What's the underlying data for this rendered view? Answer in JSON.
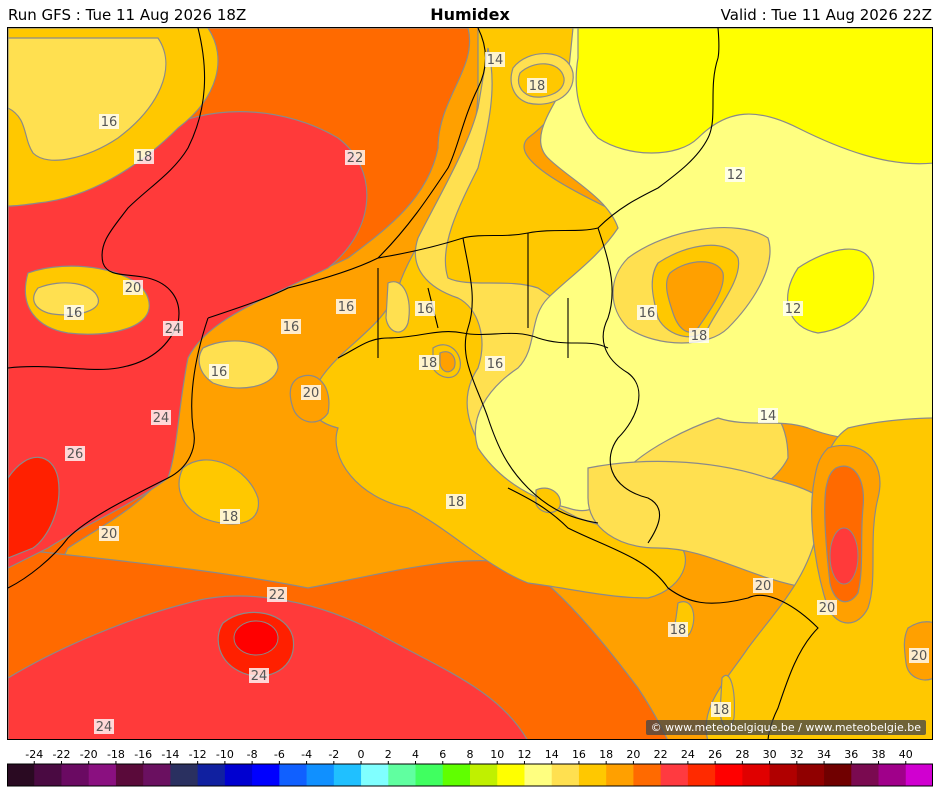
{
  "header": {
    "run": "Run GFS : Tue 11 Aug 2026 18Z",
    "title": "Humidex",
    "valid": "Valid : Tue 11 Aug 2026 22Z"
  },
  "map": {
    "credit": "© www.meteobelgique.be / www.meteobelgie.be",
    "contour_labels": [
      "14",
      "18",
      "16",
      "18",
      "22",
      "12",
      "20",
      "16",
      "24",
      "16",
      "16",
      "16",
      "18",
      "12",
      "16",
      "18",
      "20",
      "16",
      "24",
      "14",
      "26",
      "16",
      "18",
      "18",
      "20",
      "20",
      "22",
      "20",
      "18",
      "24",
      "20",
      "18",
      "24"
    ]
  },
  "colorbar": {
    "ticks": [
      "-24",
      "-22",
      "-20",
      "-18",
      "-16",
      "-14",
      "-12",
      "-10",
      "-8",
      "-6",
      "-4",
      "-2",
      "0",
      "2",
      "4",
      "6",
      "8",
      "10",
      "12",
      "14",
      "16",
      "18",
      "20",
      "22",
      "24",
      "26",
      "28",
      "30",
      "32",
      "34",
      "36",
      "38",
      "40"
    ],
    "colors": [
      "#2a0a22",
      "#4a0a42",
      "#6a0a62",
      "#8a1080",
      "#5a0a3a",
      "#6a1060",
      "#2a3060",
      "#1020a0",
      "#0000d0",
      "#0000ff",
      "#1060ff",
      "#1090ff",
      "#20c0ff",
      "#80ffff",
      "#60ffa0",
      "#40ff60",
      "#60ff00",
      "#c0f000",
      "#ffff00",
      "#ffff80",
      "#ffe050",
      "#ffc800",
      "#ffa000",
      "#ff6a00",
      "#ff3a40",
      "#ff2a00",
      "#ff0000",
      "#e00000",
      "#b00000",
      "#900000",
      "#700000",
      "#7a0a50",
      "#a0008a",
      "#d000d0"
    ]
  },
  "colors": {
    "h12": "#ffff00",
    "h14": "#ffff80",
    "h16": "#ffe050",
    "h18": "#ffc800",
    "h20": "#ffa000",
    "h22": "#ff6a00",
    "h24": "#ff3a3a",
    "h26": "#ff2000",
    "h28": "#ff0000",
    "contour": "#8a8a8a",
    "border": "#000000"
  }
}
